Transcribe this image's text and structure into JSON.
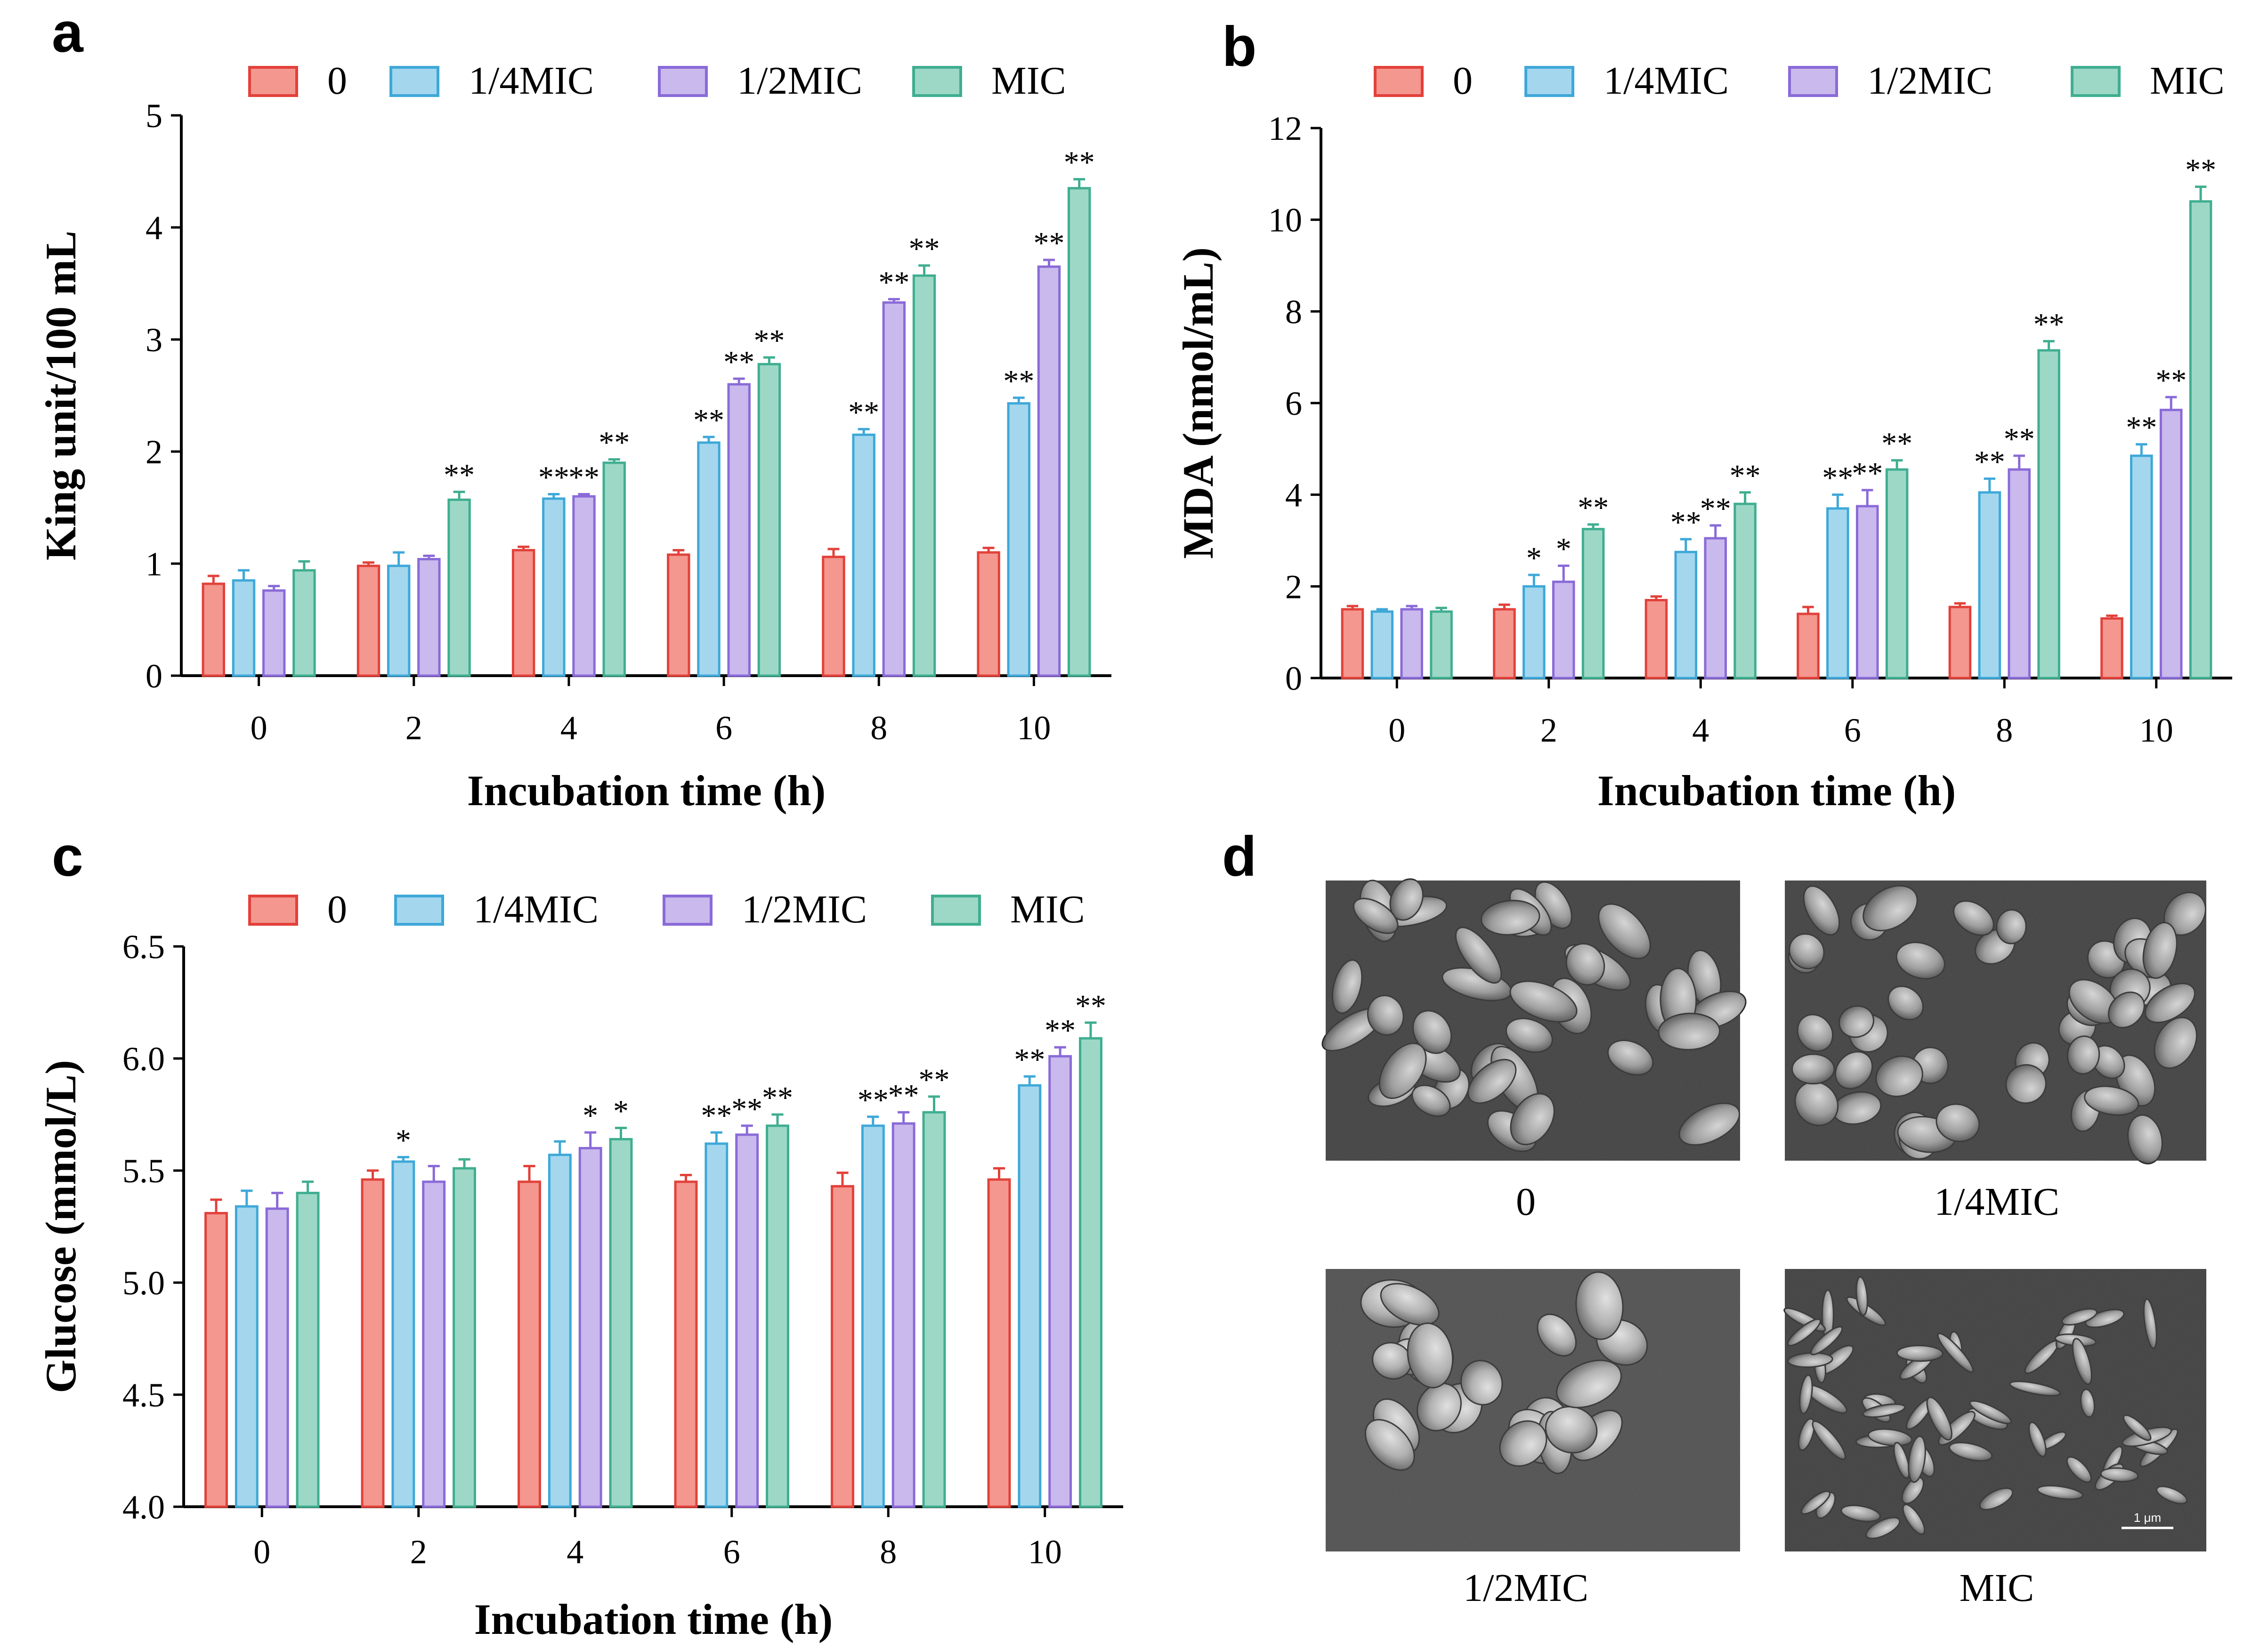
{
  "figure_letters": [
    "a",
    "b",
    "c",
    "d"
  ],
  "colors": {
    "series": [
      {
        "fill": "#f3978f",
        "stroke": "#e2413a"
      },
      {
        "fill": "#a4d7ee",
        "stroke": "#3ea8d8"
      },
      {
        "fill": "#c9b9ec",
        "stroke": "#8a6ad8"
      },
      {
        "fill": "#9dd8c6",
        "stroke": "#3fae90"
      }
    ]
  },
  "chart_data": [
    {
      "type": "bar",
      "panel": "a",
      "title": "",
      "xlabel": "Incubation time (h)",
      "ylabel": "King unit/100 mL",
      "categories": [
        "0",
        "2",
        "4",
        "6",
        "8",
        "10"
      ],
      "ylim": [
        0,
        5
      ],
      "yticks": [
        0,
        1,
        2,
        3,
        4,
        5
      ],
      "ytick_labels": [
        "0",
        "1",
        "2",
        "3",
        "4",
        "5"
      ],
      "legend": "top",
      "series": [
        {
          "name": "0",
          "values": [
            0.82,
            0.98,
            1.12,
            1.08,
            1.06,
            1.1
          ],
          "errors": [
            0.07,
            0.03,
            0.03,
            0.04,
            0.07,
            0.04
          ],
          "sig": [
            "",
            "",
            "",
            "",
            "",
            ""
          ]
        },
        {
          "name": "1/4MIC",
          "values": [
            0.85,
            0.98,
            1.58,
            2.08,
            2.15,
            2.43
          ],
          "errors": [
            0.09,
            0.12,
            0.04,
            0.05,
            0.05,
            0.05
          ],
          "sig": [
            "",
            "",
            "**",
            "**",
            "**",
            "**"
          ]
        },
        {
          "name": "1/2MIC",
          "values": [
            0.76,
            1.04,
            1.6,
            2.6,
            3.33,
            3.65
          ],
          "errors": [
            0.04,
            0.03,
            0.02,
            0.05,
            0.03,
            0.06
          ],
          "sig": [
            "",
            "",
            "**",
            "**",
            "**",
            "**"
          ]
        },
        {
          "name": "MIC",
          "values": [
            0.94,
            1.57,
            1.9,
            2.78,
            3.57,
            4.35
          ],
          "errors": [
            0.08,
            0.07,
            0.03,
            0.06,
            0.09,
            0.08
          ],
          "sig": [
            "",
            "**",
            "**",
            "**",
            "**",
            "**"
          ]
        }
      ]
    },
    {
      "type": "bar",
      "panel": "b",
      "title": "",
      "xlabel": "Incubation time (h)",
      "ylabel": "MDA (nmol/mL)",
      "categories": [
        "0",
        "2",
        "4",
        "6",
        "8",
        "10"
      ],
      "ylim": [
        0,
        12
      ],
      "yticks": [
        0,
        2,
        4,
        6,
        8,
        10,
        12
      ],
      "ytick_labels": [
        "0",
        "2",
        "4",
        "6",
        "8",
        "10",
        "12"
      ],
      "legend": "top",
      "series": [
        {
          "name": "0",
          "values": [
            1.5,
            1.5,
            1.7,
            1.4,
            1.55,
            1.3
          ],
          "errors": [
            0.07,
            0.1,
            0.08,
            0.15,
            0.08,
            0.06
          ],
          "sig": [
            "",
            "",
            "",
            "",
            "",
            ""
          ]
        },
        {
          "name": "1/4MIC",
          "values": [
            1.45,
            2.0,
            2.75,
            3.7,
            4.05,
            4.85
          ],
          "errors": [
            0.05,
            0.25,
            0.28,
            0.3,
            0.3,
            0.25
          ],
          "sig": [
            "",
            "*",
            "**",
            "**",
            "**",
            "**"
          ]
        },
        {
          "name": "1/2MIC",
          "values": [
            1.5,
            2.1,
            3.05,
            3.75,
            4.55,
            5.85
          ],
          "errors": [
            0.07,
            0.35,
            0.28,
            0.35,
            0.3,
            0.28
          ],
          "sig": [
            "",
            "*",
            "**",
            "**",
            "**",
            "**"
          ]
        },
        {
          "name": "MIC",
          "values": [
            1.45,
            3.25,
            3.8,
            4.55,
            7.15,
            10.4
          ],
          "errors": [
            0.08,
            0.1,
            0.25,
            0.2,
            0.2,
            0.32
          ],
          "sig": [
            "",
            "**",
            "**",
            "**",
            "**",
            "**"
          ]
        }
      ]
    },
    {
      "type": "bar",
      "panel": "c",
      "title": "",
      "xlabel": "Incubation time (h)",
      "ylabel": "Glucose (mmol/L)",
      "categories": [
        "0",
        "2",
        "4",
        "6",
        "8",
        "10"
      ],
      "ylim": [
        4.0,
        6.5
      ],
      "yticks": [
        4.0,
        4.5,
        5.0,
        5.5,
        6.0,
        6.5
      ],
      "ytick_labels": [
        "4.0",
        "4.5",
        "5.0",
        "5.5",
        "6.0",
        "6.5"
      ],
      "legend": "top",
      "series": [
        {
          "name": "0",
          "values": [
            5.31,
            5.46,
            5.45,
            5.45,
            5.43,
            5.46
          ],
          "errors": [
            0.06,
            0.04,
            0.07,
            0.03,
            0.06,
            0.05
          ],
          "sig": [
            "",
            "",
            "",
            "",
            "",
            ""
          ]
        },
        {
          "name": "1/4MIC",
          "values": [
            5.34,
            5.54,
            5.57,
            5.62,
            5.7,
            5.88
          ],
          "errors": [
            0.07,
            0.02,
            0.06,
            0.05,
            0.04,
            0.04
          ],
          "sig": [
            "",
            "*",
            "",
            "**",
            "**",
            "**"
          ]
        },
        {
          "name": "1/2MIC",
          "values": [
            5.33,
            5.45,
            5.6,
            5.66,
            5.71,
            6.01
          ],
          "errors": [
            0.07,
            0.07,
            0.07,
            0.04,
            0.05,
            0.04
          ],
          "sig": [
            "",
            "",
            "*",
            "**",
            "**",
            "**"
          ]
        },
        {
          "name": "MIC",
          "values": [
            5.4,
            5.51,
            5.64,
            5.7,
            5.76,
            6.09
          ],
          "errors": [
            0.05,
            0.04,
            0.05,
            0.05,
            0.07,
            0.07
          ],
          "sig": [
            "",
            "",
            "*",
            "**",
            "**",
            "**"
          ]
        }
      ]
    }
  ],
  "sem_panel": {
    "captions": [
      "0",
      "1/4MIC",
      "1/2MIC",
      "MIC"
    ],
    "scale_bar_label": "1 μm"
  }
}
